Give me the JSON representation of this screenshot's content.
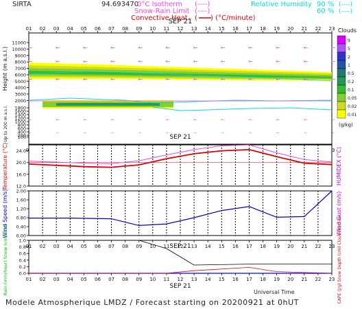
{
  "header": {
    "site": "SIRTA",
    "coords": "94.693470",
    "legend_iso": "0°C Isotherm",
    "legend_iso_sym": "(----)",
    "legend_snow": "Snow-Rain Limit",
    "legend_snow_sym": "(----)",
    "legend_conv": "Convective Heat.",
    "legend_conv_sym": "(",
    "legend_conv_unit": ") (°C/minute)",
    "legend_rh": "Relative Humidity",
    "legend_rh_90": "90 %",
    "legend_rh_60": "60 %",
    "legend_rh_sym90": "(----)",
    "legend_rh_sym60": "(----)"
  },
  "footer": {
    "title": "Modele Atmospherique LMDZ / Forecast starting on 20200921 at 0hUT",
    "universal_time": "Universal Time"
  },
  "colors": {
    "temp": "#dd0000",
    "humidex": "#ee44ee",
    "wind": "#0000cc",
    "gust": "#cc00cc",
    "cloud_frac": "#000000",
    "rain": "#00bb00",
    "snow": "#0000ff",
    "cape": "#dd0000",
    "rh": "#00dddd",
    "wind_arrow": "#ee44ee"
  },
  "chart_data": [
    {
      "type": "heatmap",
      "name": "cloud-height",
      "title": "SEP 21",
      "hours": [
        "01",
        "02",
        "03",
        "04",
        "05",
        "06",
        "07",
        "08",
        "09",
        "10",
        "11",
        "12",
        "13",
        "14",
        "15",
        "16",
        "17",
        "18",
        "19",
        "20",
        "21",
        "22",
        "23"
      ],
      "ylabel": "Height (m a.s.l.)",
      "ylabel_low": "Up to 200 m a.s.l.",
      "yticks": [
        "11000",
        "10000",
        "9000",
        "8000",
        "7000",
        "6000",
        "5000",
        "4000",
        "3000",
        "2000",
        "1800",
        "1600",
        "1400",
        "1200",
        "1000",
        "800",
        "600",
        "400",
        "200",
        "100"
      ],
      "cloud_scale_title": "Clouds",
      "cloud_scale_unit": "(g/kg)",
      "cloud_scale": [
        "9",
        "5",
        "2",
        "1",
        "0.5",
        "0.2",
        "0.1",
        "0.05",
        "0.02",
        "0.01"
      ],
      "cloud_scale_colors": [
        "#dd00ff",
        "#aa55ff",
        "#3333cc",
        "#2255aa",
        "#227777",
        "#229955",
        "#33bb33",
        "#88cc33",
        "#ccdd22",
        "#ffff00"
      ],
      "upper_layer": {
        "hours": [
          1,
          6,
          11,
          16,
          21,
          23
        ],
        "top": [
          7900,
          7600,
          7250,
          6900,
          6550,
          6400
        ],
        "base": [
          5350,
          5350,
          5250,
          5150,
          5100,
          5050
        ]
      },
      "lower_layer": {
        "hours": [
          2,
          11.5
        ],
        "top": 2200,
        "base": 1750
      }
    },
    {
      "type": "line",
      "name": "temperature",
      "title": "SEP 21",
      "ylabel": "Temperature (°C)",
      "ylabel_right": "HUMIDEX (°C)",
      "yticks": [
        "24.0",
        "20.0",
        "16.0",
        "12.0"
      ],
      "ylim": [
        12,
        26
      ],
      "x": [
        1,
        5,
        7,
        9,
        11,
        13,
        15,
        17,
        19,
        21,
        23
      ],
      "series": [
        {
          "values": [
            19.5,
            18.6,
            18.4,
            19.2,
            21.3,
            23.0,
            24.0,
            24.4,
            22.0,
            19.8,
            19.3
          ]
        },
        {
          "values": [
            20.5,
            19.8,
            19.6,
            20.6,
            22.6,
            24.4,
            25.7,
            26.0,
            23.3,
            21.0,
            20.2
          ]
        }
      ]
    },
    {
      "type": "line",
      "name": "wind",
      "ylabel": "Wind Speed (m/s)",
      "ylabel_right": "Wind Gust (m/s)",
      "yticks": [
        "2.00",
        "1.60",
        "1.20",
        "0.80",
        "0.40",
        "0.00"
      ],
      "ylim": [
        0,
        2
      ],
      "x": [
        1,
        4,
        7,
        9,
        11,
        13,
        15,
        17,
        19,
        21,
        23
      ],
      "series": [
        {
          "values": [
            0.78,
            0.78,
            0.75,
            0.45,
            0.52,
            0.8,
            1.12,
            1.3,
            0.82,
            0.85,
            2.0
          ]
        }
      ]
    },
    {
      "type": "line",
      "name": "precip",
      "title": "SEP 21",
      "ylabel": "Rain (mm/hour) Snow (cm/hour)",
      "ylabel_right": "CAPE (J/g) Snow Depth (cm) Cloud Fraction",
      "yticks": [
        "1.0",
        "0.8",
        "0.6",
        "0.4",
        "0.2",
        "0.0"
      ],
      "ylim": [
        0,
        1
      ],
      "cloud_fraction": {
        "x": [
          1,
          9,
          11,
          13,
          17,
          23
        ],
        "values": [
          1.0,
          1.0,
          0.75,
          0.25,
          0.28,
          0.28
        ]
      },
      "cape": {
        "x": [
          1,
          11,
          13,
          17,
          19,
          23
        ],
        "values": [
          0,
          0,
          0.08,
          0.18,
          0.05,
          0
        ]
      },
      "rain": {
        "x": [
          1,
          23
        ],
        "values": [
          0,
          0
        ]
      }
    }
  ]
}
